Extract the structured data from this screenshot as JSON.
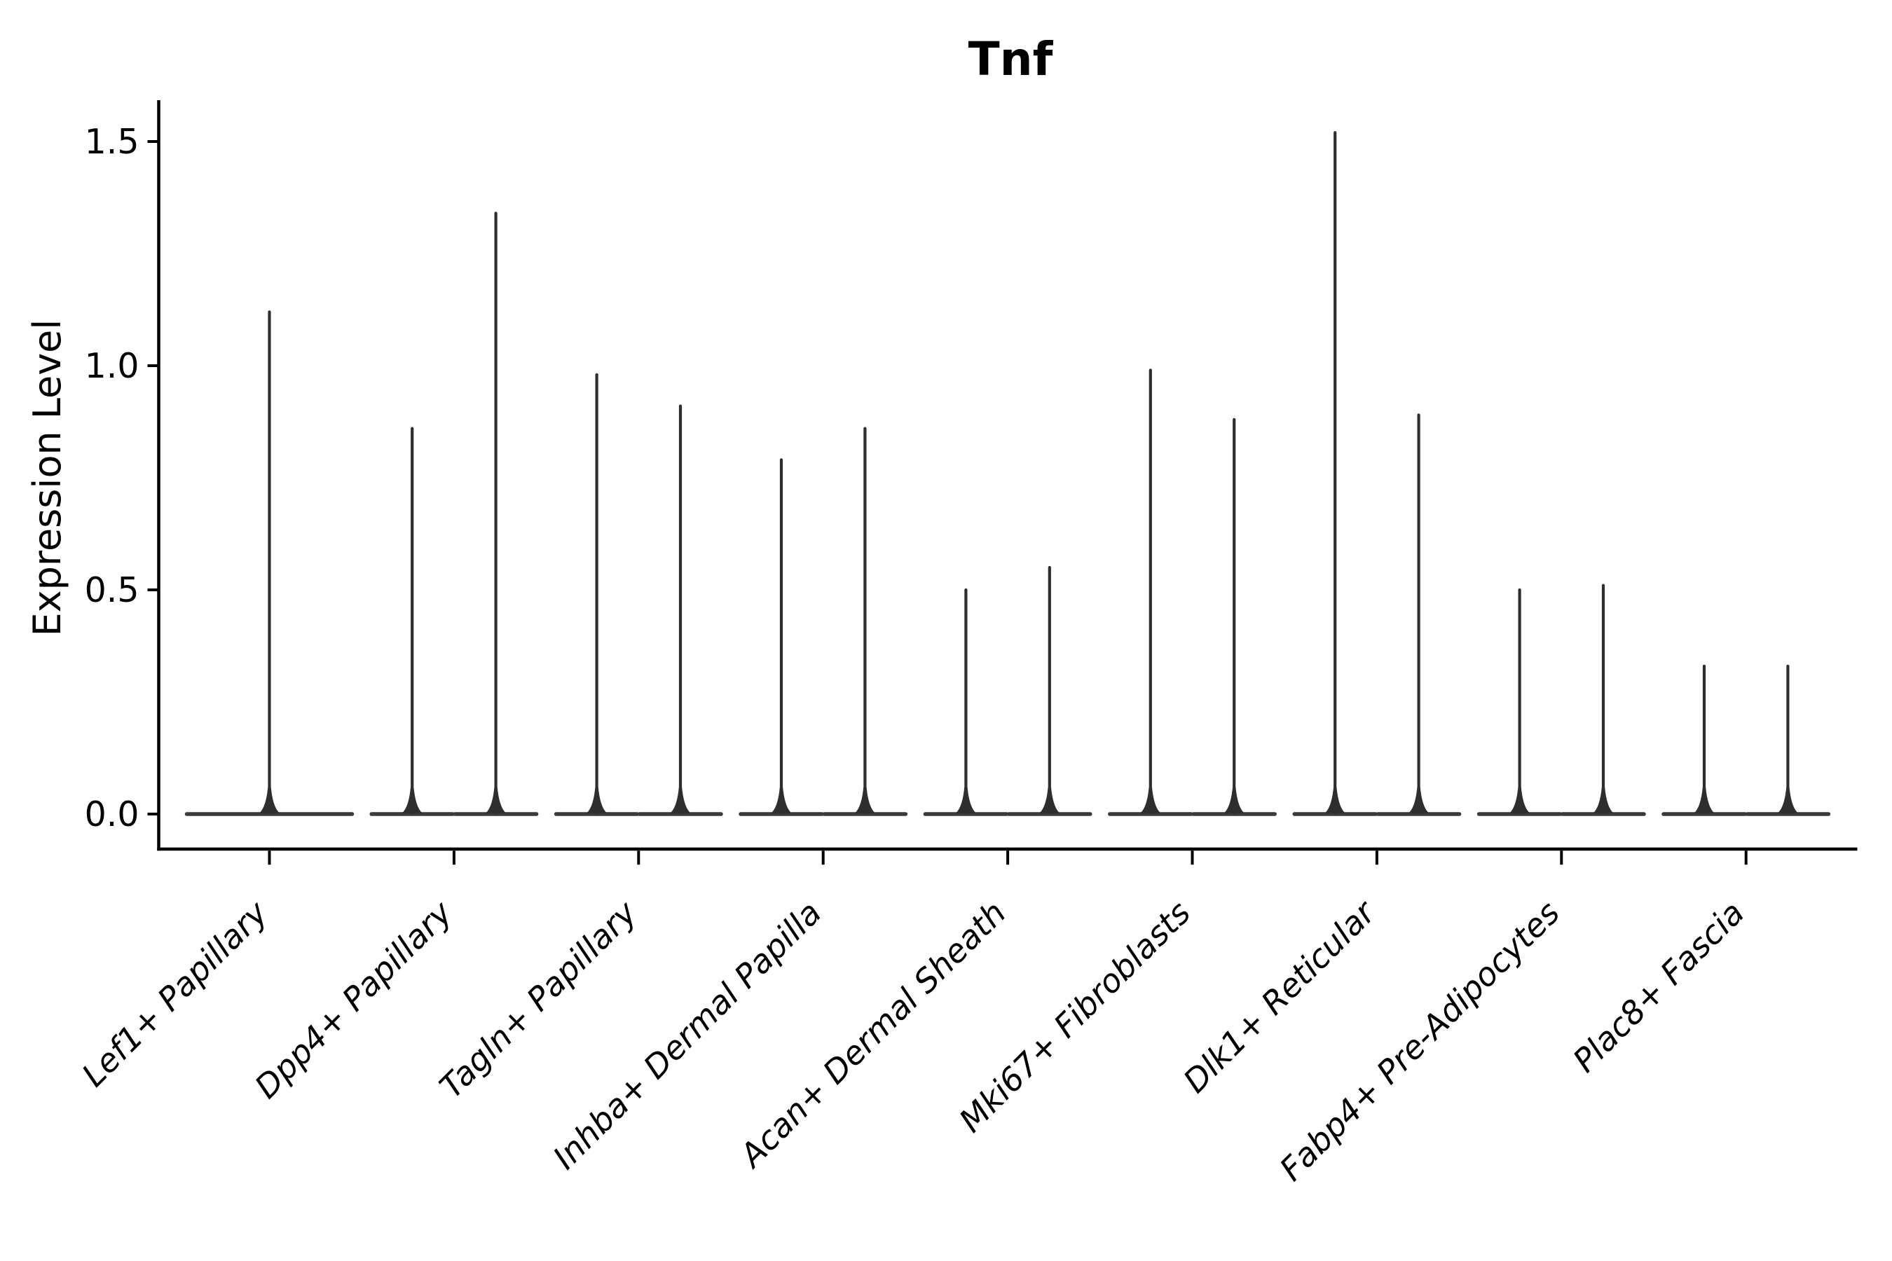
{
  "chart_data": {
    "type": "violin",
    "title": "Tnf",
    "ylabel": "Expression Level",
    "xlabel": "",
    "legend": "none",
    "grid": false,
    "background_color": "#ffffff",
    "axis_color": "#000000",
    "violin_outline_color": "#2e2e2e",
    "violin_base_color": "#3a3a3a",
    "ytick_labels": [
      "0.0",
      "0.5",
      "1.0",
      "1.5"
    ],
    "ytick_values": [
      0.0,
      0.5,
      1.0,
      1.5
    ],
    "ylim": [
      -0.08,
      1.59
    ],
    "x_labels_rotation_degrees": 45,
    "categories": [
      {
        "label": "Lef1+ Papillary",
        "violin_max_expression": [
          1.12
        ]
      },
      {
        "label": "Dpp4+ Papillary",
        "violin_max_expression": [
          0.86,
          1.34
        ]
      },
      {
        "label": "Tagln+ Papillary",
        "violin_max_expression": [
          0.98,
          0.91
        ]
      },
      {
        "label": "Inhba+ Dermal Papilla",
        "violin_max_expression": [
          0.79,
          0.86
        ]
      },
      {
        "label": "Acan+ Dermal Sheath",
        "violin_max_expression": [
          0.5,
          0.55
        ]
      },
      {
        "label": "Mki67+ Fibroblasts",
        "violin_max_expression": [
          0.99,
          0.88
        ]
      },
      {
        "label": "Dlk1+ Reticular",
        "violin_max_expression": [
          1.52,
          0.89
        ]
      },
      {
        "label": "Fabp4+ Pre-Adipocytes",
        "violin_max_expression": [
          0.5,
          0.51
        ]
      },
      {
        "label": "Plac8+ Fascia",
        "violin_max_expression": [
          0.33,
          0.33
        ]
      }
    ]
  }
}
